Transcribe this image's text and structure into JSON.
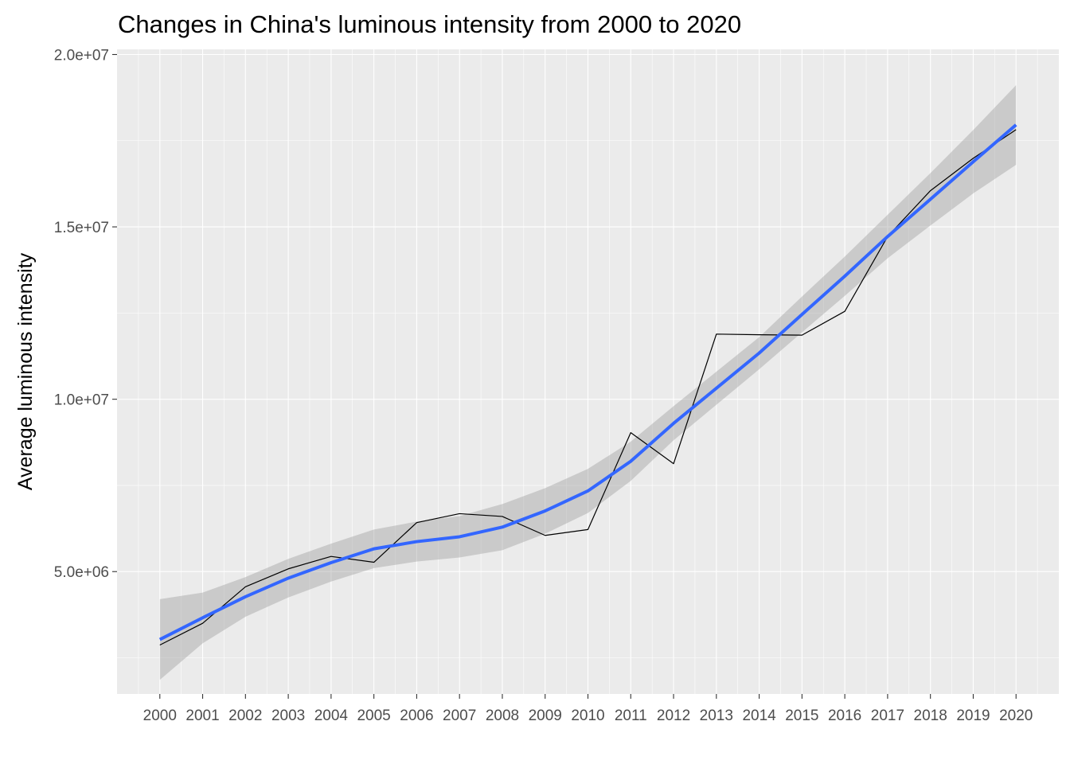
{
  "chart_data": {
    "type": "line",
    "title": "Changes in China's luminous intensity from 2000 to 2020",
    "xlabel": "",
    "ylabel": "Average luminous intensity",
    "x": [
      "2000",
      "2001",
      "2002",
      "2003",
      "2004",
      "2005",
      "2006",
      "2007",
      "2008",
      "2009",
      "2010",
      "2011",
      "2012",
      "2013",
      "2014",
      "2015",
      "2016",
      "2017",
      "2018",
      "2019",
      "2020"
    ],
    "y_ticks": [
      5000000,
      10000000,
      15000000,
      20000000
    ],
    "y_tick_labels": [
      "5.0e+06",
      "1.0e+07",
      "1.5e+07",
      "2.0e+07"
    ],
    "ylim": [
      1450000,
      20150000
    ],
    "grid": true,
    "series": [
      {
        "kind": "line",
        "color": "#000000",
        "values": [
          2870000,
          3500000,
          4560000,
          5080000,
          5440000,
          5270000,
          6420000,
          6680000,
          6600000,
          6050000,
          6220000,
          9030000,
          8130000,
          11890000,
          11870000,
          11860000,
          12550000,
          14720000,
          16050000,
          16990000,
          17820000
        ]
      },
      {
        "kind": "smooth",
        "color": "#3366FF",
        "band_color": "#999999",
        "values": [
          3030000,
          3660000,
          4270000,
          4810000,
          5260000,
          5660000,
          5870000,
          6010000,
          6290000,
          6760000,
          7340000,
          8200000,
          9300000,
          10320000,
          11340000,
          12460000,
          13570000,
          14720000,
          15800000,
          16890000,
          17960000
        ],
        "lower": [
          1860000,
          2920000,
          3690000,
          4250000,
          4710000,
          5100000,
          5290000,
          5410000,
          5620000,
          6100000,
          6700000,
          7630000,
          8810000,
          9840000,
          10870000,
          11940000,
          13000000,
          14090000,
          15040000,
          15970000,
          16800000
        ],
        "upper": [
          4200000,
          4390000,
          4840000,
          5370000,
          5810000,
          6220000,
          6450000,
          6610000,
          6960000,
          7420000,
          7980000,
          8770000,
          9800000,
          10800000,
          11800000,
          12980000,
          14140000,
          15350000,
          16560000,
          17810000,
          19110000
        ]
      }
    ]
  }
}
